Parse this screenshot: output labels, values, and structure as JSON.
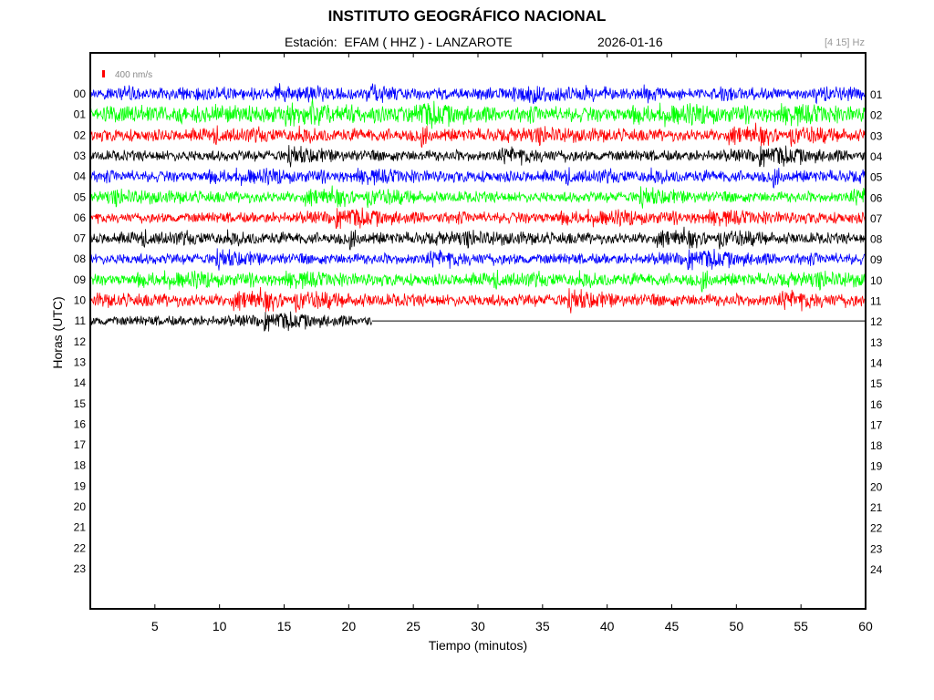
{
  "chart_data": {
    "type": "line",
    "title": "INSTITUTO GEOGRÁFICO NACIONAL",
    "station_label": "Estación:  EFAM ( HHZ ) - LANZAROTE",
    "date": "2026-01-16",
    "filter": "[4 15] Hz",
    "scale_label": "400 nm/s",
    "scale_color": "#ff0000",
    "xlabel": "Tiempo (minutos)",
    "ylabel": "Horas (UTC)",
    "xlim": [
      0,
      60
    ],
    "x_ticks": [
      "5",
      "10",
      "15",
      "20",
      "25",
      "30",
      "35",
      "40",
      "45",
      "50",
      "55",
      "60"
    ],
    "left_hour_labels": [
      "00",
      "01",
      "02",
      "03",
      "04",
      "05",
      "06",
      "07",
      "08",
      "09",
      "10",
      "11",
      "12",
      "13",
      "14",
      "15",
      "16",
      "17",
      "18",
      "19",
      "20",
      "21",
      "22",
      "23"
    ],
    "right_hour_labels": [
      "01",
      "02",
      "03",
      "04",
      "05",
      "06",
      "07",
      "08",
      "09",
      "10",
      "11",
      "12",
      "13",
      "14",
      "15",
      "16",
      "17",
      "18",
      "19",
      "20",
      "21",
      "22",
      "23",
      "24"
    ],
    "trace_colors": [
      "#0000ff",
      "#00ff00",
      "#ff0000",
      "#000000"
    ],
    "traces": [
      {
        "hour": "00",
        "color": "#0000ff",
        "end_minute": 60,
        "amplitude": 0.28
      },
      {
        "hour": "01",
        "color": "#00ff00",
        "end_minute": 60,
        "amplitude": 0.4
      },
      {
        "hour": "02",
        "color": "#ff0000",
        "end_minute": 60,
        "amplitude": 0.32
      },
      {
        "hour": "03",
        "color": "#000000",
        "end_minute": 60,
        "amplitude": 0.3
      },
      {
        "hour": "04",
        "color": "#0000ff",
        "end_minute": 60,
        "amplitude": 0.3
      },
      {
        "hour": "05",
        "color": "#00ff00",
        "end_minute": 60,
        "amplitude": 0.3
      },
      {
        "hour": "06",
        "color": "#ff0000",
        "end_minute": 60,
        "amplitude": 0.3
      },
      {
        "hour": "07",
        "color": "#000000",
        "end_minute": 60,
        "amplitude": 0.3
      },
      {
        "hour": "08",
        "color": "#0000ff",
        "end_minute": 60,
        "amplitude": 0.3
      },
      {
        "hour": "09",
        "color": "#00ff00",
        "end_minute": 60,
        "amplitude": 0.32
      },
      {
        "hour": "10",
        "color": "#ff0000",
        "end_minute": 60,
        "amplitude": 0.34
      },
      {
        "hour": "11",
        "color": "#000000",
        "end_minute": 21.8,
        "amplitude": 0.28
      }
    ]
  }
}
